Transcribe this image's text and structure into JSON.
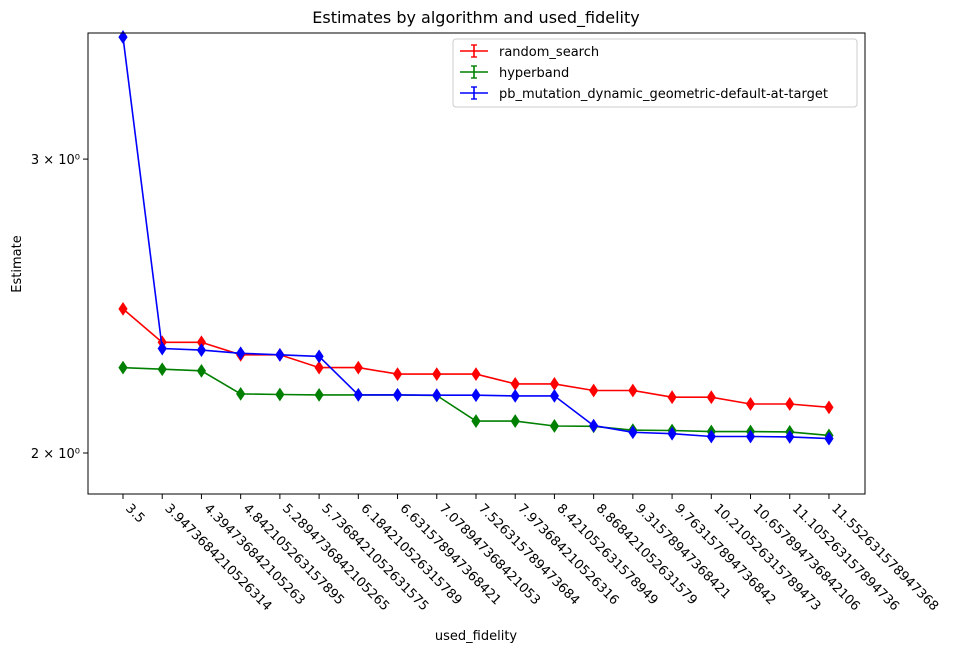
{
  "chart_data": {
    "type": "line",
    "title": "Estimates by algorithm and used_fidelity",
    "xlabel": "used_fidelity",
    "ylabel": "Estimate",
    "yscale": "log",
    "ylim": [
      1.89,
      3.57
    ],
    "yticks": [
      {
        "value": 2,
        "label": "2 × 10⁰"
      },
      {
        "value": 3,
        "label": "3 × 10⁰"
      }
    ],
    "legend_position": "top-right",
    "categories": [
      "3.5",
      "3.9473684210526314",
      "4.394736842105263",
      "4.842105263157895",
      "5.2894736842105265",
      "5.7368421052631575",
      "6.184210526315789",
      "6.631578947368421",
      "7.078947368421053",
      "7.526315789473684",
      "7.973684210526316",
      "8.421052631578949",
      "8.868421052631579",
      "9.31578947368421",
      "9.763157894736842",
      "10.210526315789473",
      "10.657894736842106",
      "11.105263157894736",
      "11.552631578947368"
    ],
    "series": [
      {
        "name": "random_search",
        "color": "#ff0000",
        "values": [
          2.44,
          2.33,
          2.33,
          2.29,
          2.29,
          2.25,
          2.25,
          2.23,
          2.23,
          2.23,
          2.2,
          2.2,
          2.18,
          2.18,
          2.16,
          2.16,
          2.14,
          2.14,
          2.13
        ]
      },
      {
        "name": "hyperband",
        "color": "#008000",
        "values": [
          2.25,
          2.245,
          2.24,
          2.17,
          2.168,
          2.167,
          2.167,
          2.167,
          2.165,
          2.09,
          2.09,
          2.076,
          2.075,
          2.064,
          2.063,
          2.06,
          2.06,
          2.059,
          2.049
        ]
      },
      {
        "name": "pb_mutation_dynamic_geometric-default-at-target",
        "color": "#0000ff",
        "values": [
          3.55,
          2.31,
          2.305,
          2.295,
          2.29,
          2.285,
          2.167,
          2.167,
          2.166,
          2.166,
          2.164,
          2.164,
          2.077,
          2.058,
          2.054,
          2.046,
          2.046,
          2.045,
          2.04
        ]
      }
    ]
  }
}
